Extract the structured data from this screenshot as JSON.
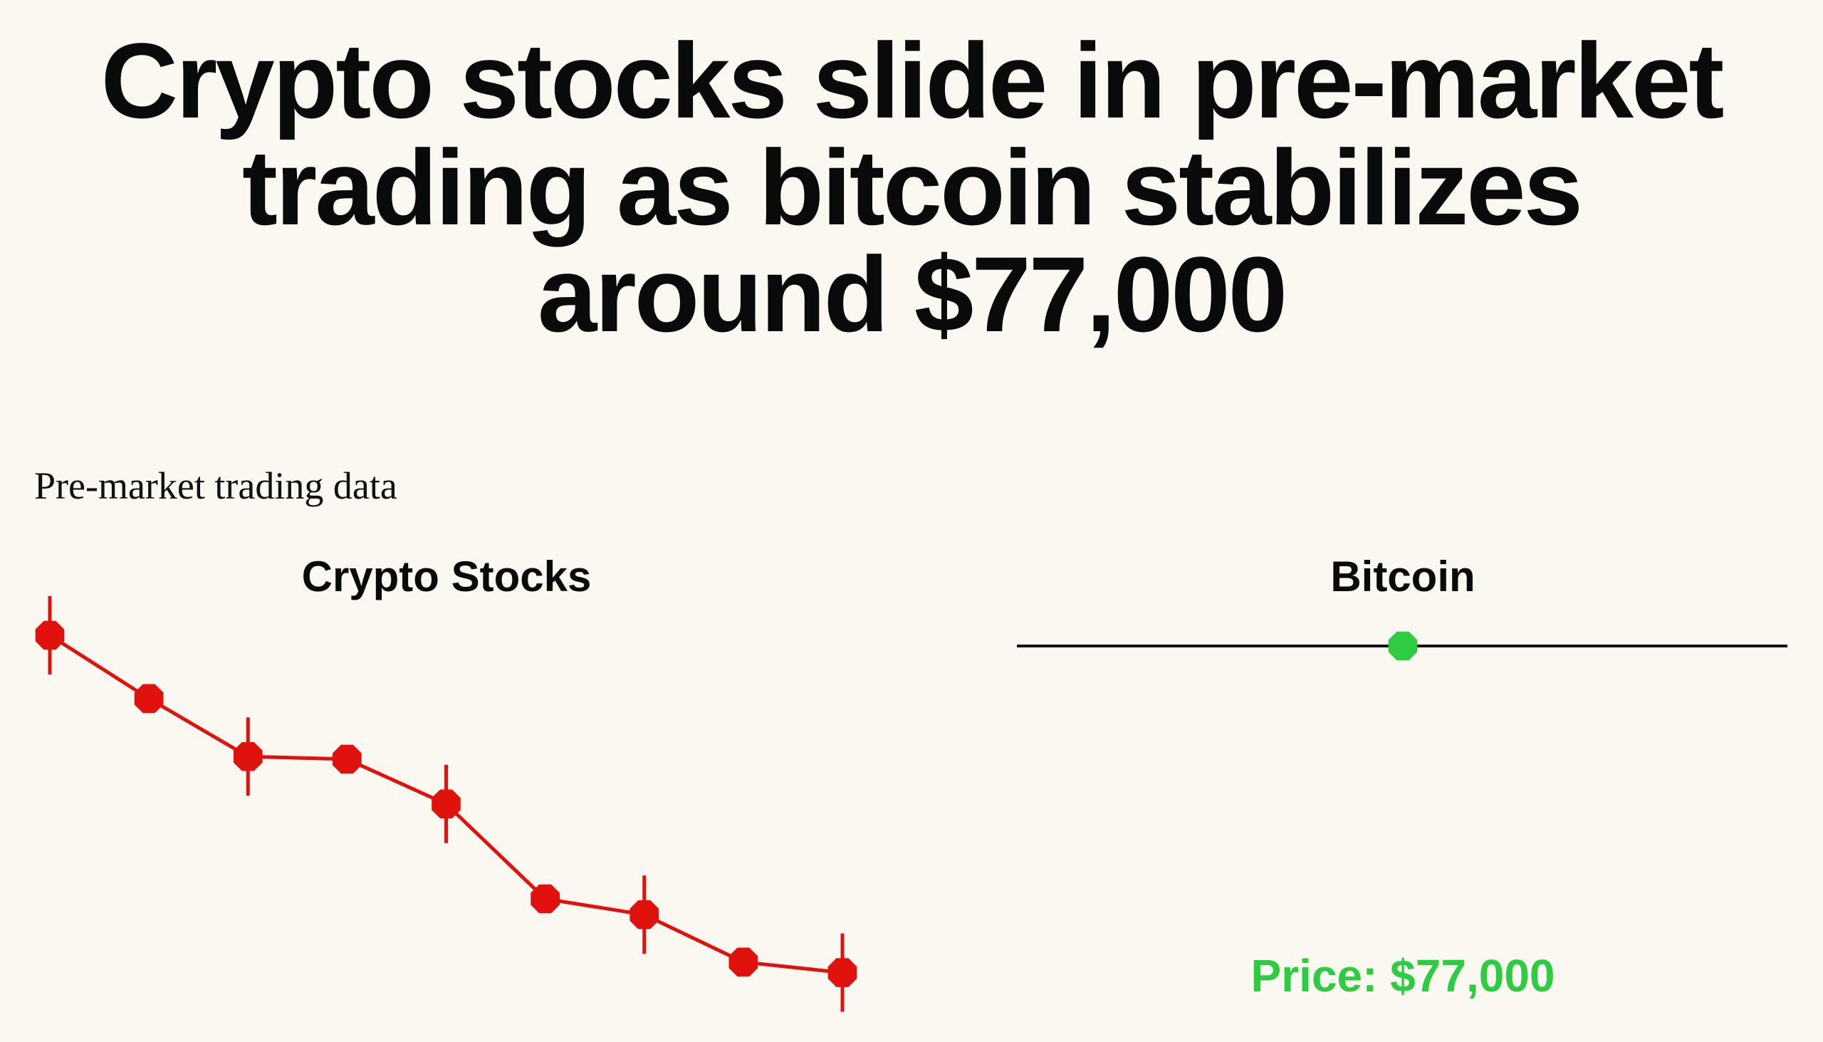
{
  "headline": "Crypto stocks slide in pre-market trading as bitcoin stabilizes around $77,000",
  "subtitle": "Pre-market trading data",
  "colors": {
    "background": "#fbf7f1",
    "down": "#e0120e",
    "up": "#2ecc40",
    "axis": "#111111"
  },
  "chart_data": [
    {
      "type": "line",
      "title": "Crypto Stocks",
      "color": "#e0120e",
      "series": [
        {
          "values": [
            100,
            88,
            77,
            76.5,
            68,
            50,
            47,
            38,
            36
          ],
          "wicks": [
            true,
            false,
            true,
            false,
            true,
            false,
            true,
            false,
            true
          ]
        }
      ],
      "ylim": [
        30,
        105
      ],
      "grid": false,
      "legend": "none"
    },
    {
      "type": "line",
      "title": "Bitcoin",
      "color": "#2ecc40",
      "series": [
        {
          "values": [
            77000
          ]
        }
      ],
      "annotation": "Price: $77,000",
      "grid": false,
      "legend": "none"
    }
  ]
}
